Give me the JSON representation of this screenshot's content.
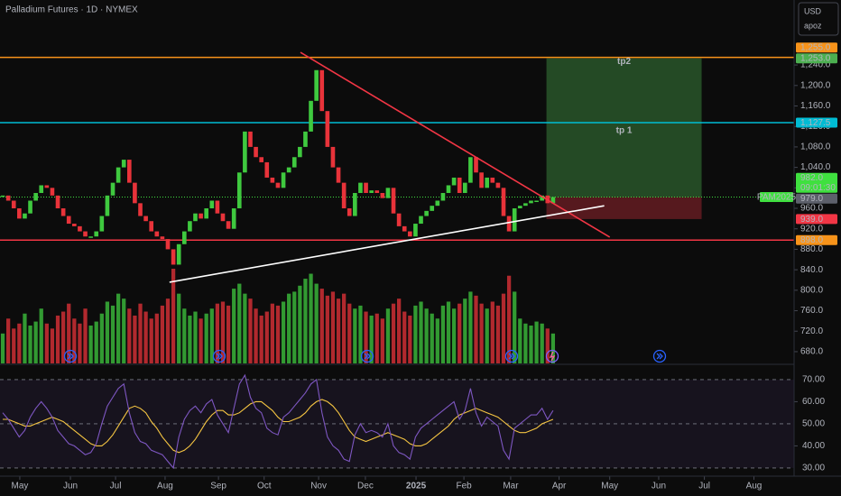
{
  "chart_data": {
    "type": "candlestick",
    "title": "Palladium Futures · 1D · NYMEX",
    "currency": "USD",
    "account": "apoz",
    "xlim": [
      -0.5,
      143.8
    ],
    "xticks": [
      {
        "value": 3.1,
        "label": "May"
      },
      {
        "value": 12.3,
        "label": "Jun"
      },
      {
        "value": 20.5,
        "label": "Jul"
      },
      {
        "value": 29.5,
        "label": "Aug"
      },
      {
        "value": 39.2,
        "label": "Sep"
      },
      {
        "value": 47.5,
        "label": "Oct"
      },
      {
        "value": 57.4,
        "label": "Nov"
      },
      {
        "value": 65.9,
        "label": "Dec"
      },
      {
        "value": 75.1,
        "label": "2025"
      },
      {
        "value": 83.8,
        "label": "Feb"
      },
      {
        "value": 92.3,
        "label": "Mar"
      },
      {
        "value": 101.1,
        "label": "Apr"
      },
      {
        "value": 110.3,
        "label": "May"
      },
      {
        "value": 119.2,
        "label": "Jun"
      },
      {
        "value": 127.5,
        "label": "Jul"
      },
      {
        "value": 136.5,
        "label": "Aug"
      }
    ],
    "ylim": [
      657,
      1367
    ],
    "yticks": [
      {
        "value": 680,
        "label": "680.0"
      },
      {
        "value": 720,
        "label": "720.0"
      },
      {
        "value": 760,
        "label": "760.0"
      },
      {
        "value": 800,
        "label": "800.0"
      },
      {
        "value": 840,
        "label": "840.0"
      },
      {
        "value": 880,
        "label": "880.0"
      },
      {
        "value": 920,
        "label": "920.0"
      },
      {
        "value": 960,
        "label": "960.0"
      },
      {
        "value": 1000,
        "label": "1,000.0"
      },
      {
        "value": 1040,
        "label": "1,040.0"
      },
      {
        "value": 1080,
        "label": "1,080.0"
      },
      {
        "value": 1120,
        "label": "1,120.0"
      },
      {
        "value": 1160,
        "label": "1,160.0"
      },
      {
        "value": 1200,
        "label": "1,200.0"
      },
      {
        "value": 1240,
        "label": "1,240.0"
      }
    ],
    "up_color": "#3fc93f",
    "down_color": "#e8333a",
    "values": [
      985,
      975,
      960,
      940,
      950,
      975,
      990,
      1005,
      1000,
      985,
      960,
      945,
      930,
      925,
      915,
      905,
      905,
      915,
      945,
      985,
      1010,
      1040,
      1055,
      1010,
      970,
      945,
      935,
      915,
      905,
      900,
      880,
      850,
      890,
      915,
      935,
      950,
      940,
      960,
      975,
      950,
      935,
      920,
      960,
      1030,
      1110,
      1080,
      1060,
      1050,
      1020,
      1010,
      1000,
      1030,
      1040,
      1060,
      1080,
      1110,
      1170,
      1230,
      1150,
      1080,
      1040,
      1010,
      960,
      945,
      990,
      1010,
      990,
      995,
      990,
      980,
      1000,
      950,
      925,
      915,
      905,
      930,
      945,
      955,
      965,
      975,
      990,
      1005,
      1020,
      990,
      1010,
      1060,
      1030,
      1000,
      1020,
      1010,
      1000,
      945,
      915,
      960,
      965,
      970,
      975,
      975,
      985,
      970,
      982
    ],
    "volume": [
      30,
      45,
      35,
      40,
      50,
      38,
      42,
      55,
      40,
      35,
      48,
      52,
      60,
      45,
      40,
      55,
      38,
      42,
      50,
      62,
      58,
      70,
      65,
      55,
      48,
      60,
      52,
      45,
      50,
      58,
      65,
      95,
      70,
      55,
      48,
      52,
      45,
      50,
      55,
      60,
      62,
      58,
      75,
      80,
      70,
      65,
      55,
      48,
      52,
      60,
      58,
      62,
      70,
      72,
      78,
      85,
      90,
      80,
      75,
      68,
      72,
      65,
      70,
      60,
      55,
      58,
      52,
      48,
      50,
      45,
      55,
      60,
      65,
      52,
      48,
      58,
      62,
      55,
      50,
      45,
      58,
      62,
      55,
      60,
      65,
      72,
      68,
      60,
      55,
      62,
      58,
      70,
      88,
      72,
      45,
      40,
      38,
      42,
      40,
      35,
      30
    ],
    "hlines": [
      {
        "value": 1255,
        "color": "#f7931a",
        "label": "tp2"
      },
      {
        "value": 1127.5,
        "color": "#00bcd4",
        "label": "tp 1"
      },
      {
        "value": 898,
        "color": "#f23645"
      }
    ],
    "trendlines": [
      {
        "x": [
          54.1,
          110.3
        ],
        "y": [
          1264.6,
          903.7
        ],
        "color": "#f23645"
      },
      {
        "x": [
          30.3,
          109.3
        ],
        "y": [
          815.7,
          965
        ],
        "color": "#ffffff"
      }
    ],
    "position": {
      "x": [
        98.8,
        127.0
      ],
      "entry": 982,
      "target": 1253,
      "stop": 939
    },
    "price_tags": [
      {
        "value": 1255,
        "label": "1,255.0",
        "color": "#f7931a"
      },
      {
        "value": 1253,
        "label": "1,253.0",
        "color": "#4caf50"
      },
      {
        "value": 1127.5,
        "label": "1,127.5",
        "color": "#00bcd4"
      },
      {
        "value": 982,
        "label": "982.0",
        "color": "#3fe03f",
        "symbol": "PAM2025",
        "countdown": "09:01:30"
      },
      {
        "value": 979,
        "label": "979.0",
        "color": "#5d606b"
      },
      {
        "value": 939,
        "label": "939.0",
        "color": "#f23645"
      },
      {
        "value": 898,
        "label": "898.0",
        "color": "#f7931a"
      }
    ],
    "rsi": {
      "ylim": [
        26.3,
        76.5
      ],
      "yticks": [
        {
          "value": 30,
          "label": "30.00"
        },
        {
          "value": 40,
          "label": "40.00"
        },
        {
          "value": 50,
          "label": "50.00"
        },
        {
          "value": 60,
          "label": "60.00"
        },
        {
          "value": 70,
          "label": "70.00"
        }
      ],
      "color": "#7e57c2",
      "ma_color": "#f5c542",
      "values": [
        55,
        52,
        48,
        44,
        47,
        53,
        57,
        60,
        57,
        53,
        47,
        44,
        41,
        40,
        38,
        36,
        37,
        41,
        50,
        58,
        62,
        66,
        68,
        55,
        46,
        42,
        41,
        38,
        37,
        36,
        33,
        30,
        44,
        52,
        56,
        58,
        55,
        59,
        61,
        54,
        50,
        46,
        57,
        68,
        72,
        62,
        57,
        55,
        48,
        46,
        45,
        53,
        55,
        58,
        61,
        64,
        68,
        70,
        55,
        44,
        40,
        38,
        34,
        33,
        45,
        50,
        46,
        47,
        46,
        44,
        50,
        40,
        37,
        36,
        34,
        44,
        48,
        50,
        52,
        54,
        56,
        58,
        60,
        52,
        56,
        66,
        55,
        49,
        53,
        51,
        49,
        38,
        34,
        48,
        50,
        52,
        54,
        54,
        57,
        52,
        56
      ],
      "ma": [
        52,
        52,
        51,
        50,
        49,
        49,
        50,
        51,
        52,
        53,
        52,
        51,
        49,
        47,
        45,
        43,
        41,
        40,
        40,
        42,
        45,
        49,
        53,
        57,
        58,
        57,
        55,
        51,
        48,
        44,
        41,
        38,
        37,
        38,
        40,
        43,
        47,
        51,
        54,
        56,
        56,
        54,
        54,
        55,
        57,
        59,
        60,
        60,
        58,
        56,
        53,
        51,
        51,
        52,
        53,
        55,
        58,
        60,
        61,
        60,
        58,
        55,
        51,
        47,
        44,
        43,
        42,
        43,
        44,
        45,
        46,
        45,
        44,
        43,
        41,
        40,
        40,
        41,
        43,
        45,
        47,
        49,
        52,
        54,
        55,
        56,
        57,
        56,
        55,
        54,
        53,
        51,
        49,
        47,
        46,
        46,
        47,
        48,
        50,
        51,
        52
      ]
    }
  }
}
